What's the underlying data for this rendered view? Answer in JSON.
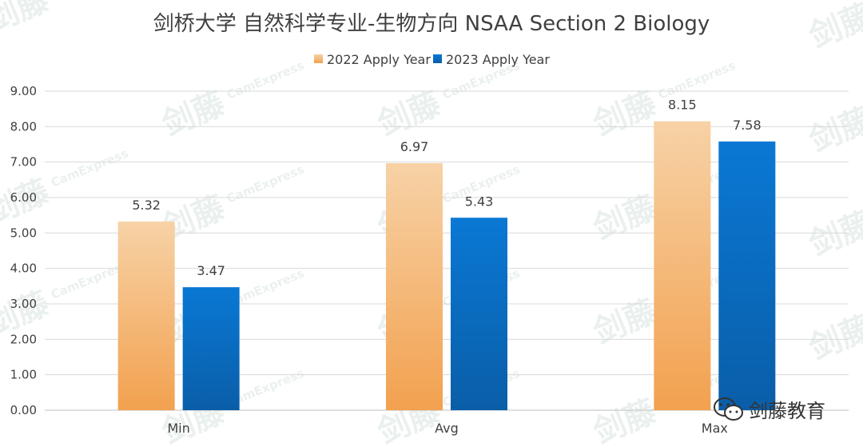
{
  "chart_data": {
    "type": "bar",
    "title": "剑桥大学 自然科学专业-生物方向 NSAA Section 2 Biology",
    "categories": [
      "Min",
      "Avg",
      "Max"
    ],
    "series": [
      {
        "name": "2022 Apply Year",
        "values": [
          5.32,
          6.97,
          8.15
        ],
        "color_top": "#f7d2a6",
        "color_bottom": "#f2a14f"
      },
      {
        "name": "2023 Apply Year",
        "values": [
          3.47,
          5.43,
          7.58
        ],
        "color_top": "#0a78d4",
        "color_bottom": "#0a5ea8"
      }
    ],
    "data_labels": [
      [
        "5.32",
        "6.97",
        "8.15"
      ],
      [
        "3.47",
        "5.43",
        "7.58"
      ]
    ],
    "ylim": [
      0,
      9
    ],
    "yticks": [
      "0.00",
      "1.00",
      "2.00",
      "3.00",
      "4.00",
      "5.00",
      "6.00",
      "7.00",
      "8.00",
      "9.00"
    ],
    "legend_position": "top-center",
    "grid": true,
    "grid_color": "#d9d9d9"
  },
  "watermark": {
    "main": "剑藤",
    "sub": "CamExpress"
  },
  "badge": {
    "icon": "wechat-icon",
    "text": "剑藤教育"
  }
}
